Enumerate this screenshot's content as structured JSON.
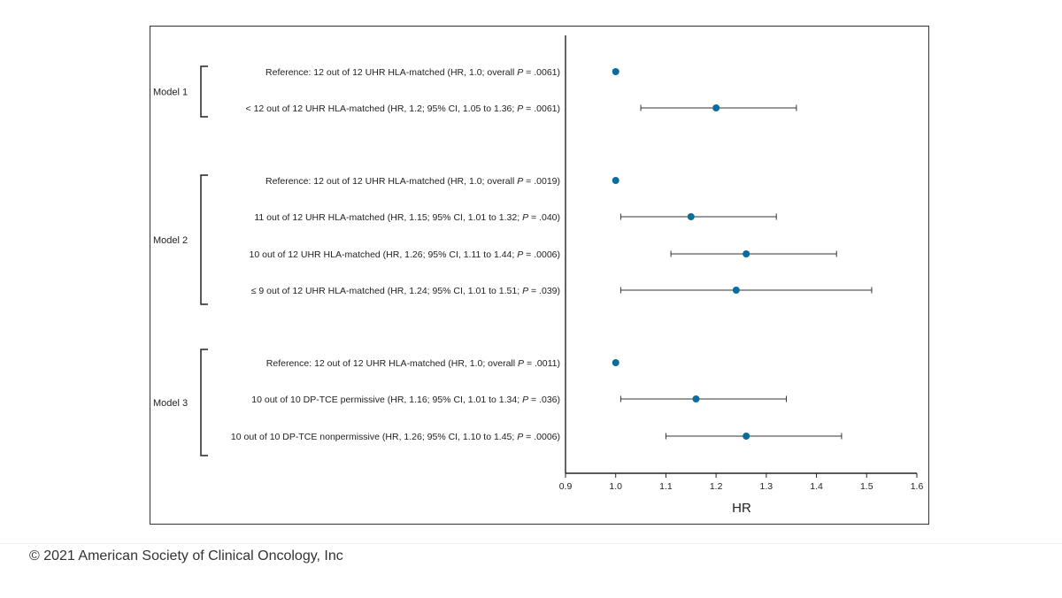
{
  "footer": {
    "copyright": "© 2021 American Society of Clinical Oncology, Inc"
  },
  "chart_data": {
    "type": "forest",
    "xlabel": "HR",
    "xlim": [
      0.9,
      1.6
    ],
    "xticks": [
      0.9,
      1.0,
      1.1,
      1.2,
      1.3,
      1.4,
      1.5,
      1.6
    ],
    "tick_labels": [
      "0.9",
      "1.0",
      "1.1",
      "1.2",
      "1.3",
      "1.4",
      "1.5",
      "1.6"
    ],
    "point_color": "#0a6d9c",
    "groups": [
      {
        "name": "Model 1",
        "rows": [
          {
            "label": "Reference: 12 out of 12 UHR HLA-matched (HR, 1.0; overall P = .0061)",
            "hr": 1.0
          },
          {
            "label": "< 12 out of 12 UHR HLA-matched (HR, 1.2; 95% CI, 1.05 to 1.36; P = .0061)",
            "hr": 1.2,
            "lo": 1.05,
            "hi": 1.36
          }
        ]
      },
      {
        "name": "Model 2",
        "rows": [
          {
            "label": "Reference: 12 out of 12 UHR HLA-matched (HR, 1.0; overall P = .0019)",
            "hr": 1.0
          },
          {
            "label": "11 out of 12 UHR HLA-matched (HR, 1.15; 95% CI, 1.01 to 1.32; P = .040)",
            "hr": 1.15,
            "lo": 1.01,
            "hi": 1.32
          },
          {
            "label": "10 out of 12 UHR HLA-matched (HR, 1.26; 95% CI, 1.11 to 1.44; P = .0006)",
            "hr": 1.26,
            "lo": 1.11,
            "hi": 1.44
          },
          {
            "label": "≤ 9 out of 12 UHR HLA-matched (HR, 1.24; 95% CI, 1.01 to 1.51; P = .039)",
            "hr": 1.24,
            "lo": 1.01,
            "hi": 1.51
          }
        ]
      },
      {
        "name": "Model 3",
        "rows": [
          {
            "label": "Reference: 12 out of 12 UHR HLA-matched (HR, 1.0; overall P = .0011)",
            "hr": 1.0
          },
          {
            "label": "10 out of 10 DP-TCE permissive (HR, 1.16; 95% CI, 1.01 to 1.34; P = .036)",
            "hr": 1.16,
            "lo": 1.01,
            "hi": 1.34
          },
          {
            "label": "10 out of 10 DP-TCE nonpermissive (HR, 1.26; 95% CI, 1.10 to 1.45; P = .0006)",
            "hr": 1.26,
            "lo": 1.1,
            "hi": 1.45
          }
        ]
      }
    ]
  }
}
